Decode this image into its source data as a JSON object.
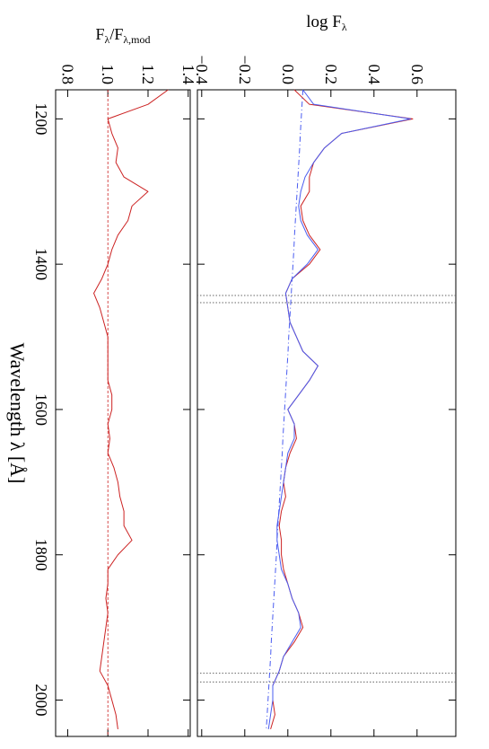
{
  "chart_data": {
    "type": "line",
    "x_label": "Wavelength λ [Å]",
    "x": [
      1160,
      1180,
      1200,
      1220,
      1240,
      1260,
      1280,
      1300,
      1320,
      1340,
      1360,
      1380,
      1400,
      1420,
      1440,
      1460,
      1480,
      1500,
      1520,
      1540,
      1560,
      1580,
      1600,
      1620,
      1640,
      1660,
      1680,
      1700,
      1720,
      1740,
      1760,
      1780,
      1800,
      1820,
      1840,
      1860,
      1880,
      1900,
      1920,
      1940,
      1960,
      1980,
      2000,
      2020,
      2040
    ],
    "xlim": [
      1160,
      2050
    ],
    "xticks": [
      1200,
      1400,
      1600,
      1800,
      2000
    ],
    "panels": [
      {
        "y_label": {
          "parts": [
            "log F",
            "λ"
          ]
        },
        "ylim": [
          -0.42,
          0.78
        ],
        "yticks": [
          {
            "value": -0.4,
            "label": "−0.4"
          },
          {
            "value": -0.2,
            "label": "−0.2"
          },
          {
            "value": 0,
            "label": "0.0"
          },
          0.2,
          0.4,
          0.6
        ],
        "series": [
          {
            "color": "#cc2222",
            "values": [
              0.03,
              0.1,
              0.58,
              0.25,
              0.17,
              0.12,
              0.1,
              0.1,
              0.06,
              0.07,
              0.1,
              0.15,
              0.1,
              0.02,
              -0.01,
              0.0,
              0.01,
              0.04,
              0.07,
              0.14,
              0.1,
              0.05,
              0.0,
              0.03,
              0.04,
              0.01,
              -0.01,
              -0.02,
              -0.01,
              -0.03,
              -0.04,
              -0.03,
              -0.03,
              -0.02,
              0.0,
              0.02,
              0.05,
              0.07,
              0.03,
              -0.02,
              -0.04,
              -0.07,
              -0.07,
              -0.06,
              -0.08
            ]
          },
          {
            "color": "#4a5cf0",
            "values": [
              0.07,
              0.12,
              0.57,
              0.25,
              0.17,
              0.12,
              0.08,
              0.06,
              0.05,
              0.06,
              0.09,
              0.14,
              0.09,
              0.02,
              -0.01,
              0.0,
              0.01,
              0.04,
              0.07,
              0.14,
              0.1,
              0.05,
              0.0,
              0.03,
              0.03,
              0.0,
              -0.01,
              -0.02,
              -0.03,
              -0.04,
              -0.05,
              -0.05,
              -0.04,
              -0.03,
              0.0,
              0.02,
              0.05,
              0.06,
              0.02,
              -0.02,
              -0.04,
              -0.07,
              -0.07,
              -0.08,
              -0.09
            ]
          },
          {
            "color": "#4a5cf0",
            "dash": "dashdot",
            "values": [
              0.07,
              0.066,
              0.062,
              0.058,
              0.055,
              0.051,
              0.047,
              0.043,
              0.039,
              0.035,
              0.031,
              0.028,
              0.024,
              0.02,
              0.016,
              0.012,
              0.008,
              0.004,
              0.001,
              -0.003,
              -0.007,
              -0.011,
              -0.015,
              -0.019,
              -0.023,
              -0.026,
              -0.03,
              -0.034,
              -0.038,
              -0.042,
              -0.046,
              -0.05,
              -0.053,
              -0.057,
              -0.061,
              -0.065,
              -0.069,
              -0.073,
              -0.077,
              -0.08,
              -0.084,
              -0.088,
              -0.092,
              -0.096,
              -0.1
            ]
          }
        ],
        "vlines": [
          1443,
          1453,
          1963,
          1975
        ]
      },
      {
        "y_label": {
          "parts": [
            "F",
            "λ",
            "/F",
            "λ,mod"
          ]
        },
        "ylim": [
          0.74,
          1.41
        ],
        "yticks": [
          0.8,
          {
            "value": 1,
            "label": "1.0"
          },
          1.2,
          1.4
        ],
        "series": [
          {
            "color": "#cc2222",
            "values": [
              1.3,
              1.2,
              1.0,
              1.02,
              1.05,
              1.04,
              1.08,
              1.2,
              1.12,
              1.1,
              1.05,
              1.02,
              1.0,
              0.97,
              0.93,
              0.96,
              0.98,
              1.0,
              1.0,
              1.0,
              1.0,
              1.02,
              1.02,
              1.0,
              1.01,
              1.0,
              1.03,
              1.05,
              1.06,
              1.08,
              1.08,
              1.12,
              1.05,
              1.0,
              1.0,
              0.99,
              1.0,
              0.99,
              0.98,
              0.97,
              0.96,
              1.0,
              1.02,
              1.04,
              1.05
            ]
          }
        ],
        "hline": 1
      }
    ]
  }
}
